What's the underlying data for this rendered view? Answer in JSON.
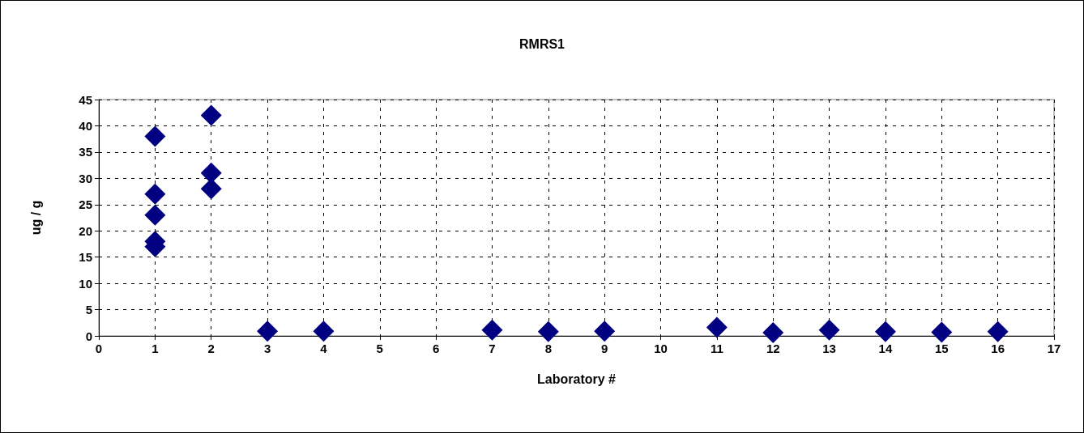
{
  "chart_data": {
    "type": "scatter",
    "title": "RMRS1",
    "xlabel": "Laboratory #",
    "ylabel": "ug / g",
    "series": [
      {
        "color": "#000080",
        "x": [
          1,
          1,
          1,
          1,
          1,
          2,
          2,
          2,
          3,
          4,
          7,
          8,
          9,
          11,
          12,
          13,
          14,
          15,
          16
        ],
        "values": [
          38,
          27,
          23,
          18,
          17,
          42,
          31,
          28,
          0.9,
          0.9,
          1.1,
          0.8,
          0.9,
          1.6,
          0.6,
          1.1,
          0.8,
          0.7,
          0.8
        ]
      }
    ],
    "xlim": [
      0,
      17
    ],
    "xticks": [
      0,
      1,
      2,
      3,
      4,
      5,
      6,
      7,
      8,
      9,
      10,
      11,
      12,
      13,
      14,
      15,
      16,
      17
    ],
    "ylim": [
      0,
      45
    ],
    "yticks": [
      0,
      5,
      10,
      15,
      20,
      25,
      30,
      35,
      40,
      45
    ],
    "grid": true,
    "marker": "diamond"
  }
}
